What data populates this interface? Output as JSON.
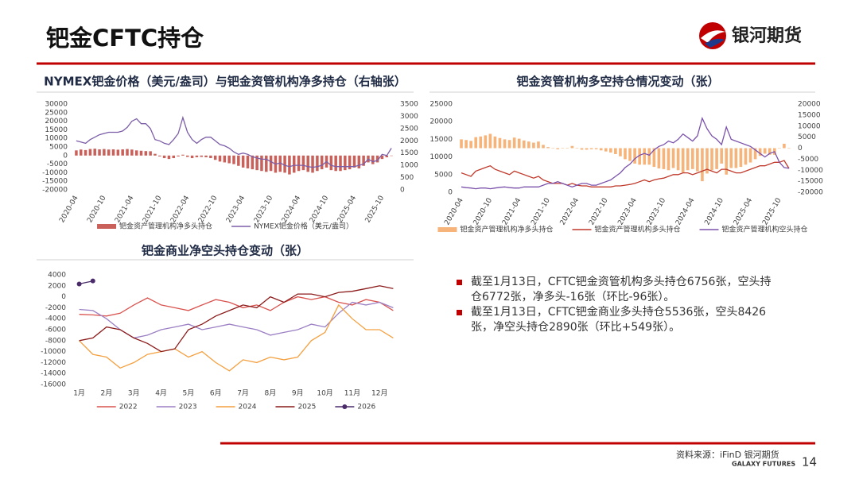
{
  "header": {
    "title": "钯金CFTC持仓",
    "logo_text": "银河期货"
  },
  "chart_data": [
    {
      "type": "combo",
      "title": "NYMEX钯金价格（美元/盎司）与钯金资管机构净多持仓（右轴张）",
      "legend": "bottom",
      "categories": [
        "2020-04",
        null,
        null,
        null,
        null,
        null,
        "2020-10",
        null,
        null,
        null,
        null,
        null,
        "2021-04",
        null,
        null,
        null,
        null,
        null,
        "2021-10",
        null,
        null,
        null,
        null,
        null,
        "2022-04",
        null,
        null,
        null,
        null,
        null,
        "2022-10",
        null,
        null,
        null,
        null,
        null,
        "2023-04",
        null,
        null,
        null,
        null,
        null,
        "2023-10",
        null,
        null,
        null,
        null,
        null,
        "2024-04",
        null,
        null,
        null,
        null,
        null,
        "2024-10",
        null,
        null,
        null,
        null,
        null,
        "2025-04",
        null,
        null,
        null,
        null,
        null,
        "2025-10",
        null,
        null
      ],
      "ylim": [
        -20000,
        30000
      ],
      "yticks": [
        -20000,
        -15000,
        -10000,
        -5000,
        0,
        5000,
        10000,
        15000,
        20000,
        25000,
        30000
      ],
      "y2lim": [
        0,
        3500
      ],
      "y2ticks": [
        0,
        500,
        1000,
        1500,
        2000,
        2500,
        3000,
        3500
      ],
      "series": [
        {
          "name": "钯金资产管理机构净多头持仓",
          "type": "bar",
          "color": "#c9605a",
          "values": [
            3000,
            3500,
            3200,
            3800,
            4000,
            3600,
            3800,
            3500,
            3600,
            3400,
            3600,
            3800,
            3500,
            3000,
            2800,
            2600,
            2500,
            1000,
            -500,
            -1500,
            -2000,
            -1500,
            -500,
            500,
            -800,
            -1500,
            -1000,
            -800,
            -1000,
            -1500,
            -2500,
            -3500,
            -4000,
            -4500,
            -5000,
            -6000,
            -7000,
            -7500,
            -8000,
            -8500,
            -9000,
            -9500,
            -9000,
            -10000,
            -9500,
            -10000,
            -11000,
            -10000,
            -9000,
            -8500,
            -9500,
            -10000,
            -9000,
            -8000,
            -7000,
            -8500,
            -9000,
            -9000,
            -8500,
            -8000,
            -7000,
            -7500,
            -6000,
            -4000,
            -5000,
            -4000,
            -2000,
            -1000,
            -16
          ]
        },
        {
          "name": "NYMEX钯金价格（美元/盎司）",
          "type": "line",
          "axis": "y2",
          "color": "#7b5ea7",
          "values": [
            2000,
            1950,
            1900,
            2050,
            2150,
            2250,
            2300,
            2350,
            2350,
            2350,
            2400,
            2550,
            2800,
            2900,
            2700,
            2700,
            2500,
            2050,
            2000,
            1900,
            1850,
            2050,
            2300,
            2950,
            2350,
            2050,
            1900,
            2050,
            2150,
            2150,
            2000,
            1850,
            1800,
            1700,
            1550,
            1450,
            1500,
            1450,
            1350,
            1300,
            1250,
            1250,
            1150,
            1050,
            1100,
            1000,
            950,
            1000,
            1000,
            1000,
            950,
            920,
            950,
            1000,
            1150,
            1000,
            950,
            950,
            950,
            950,
            950,
            1000,
            1050,
            1250,
            1150,
            1200,
            1450,
            1400,
            1700
          ]
        }
      ]
    },
    {
      "type": "combo",
      "title": "钯金资管机构多空持仓情况变动（张）",
      "legend": "bottom",
      "categories": [
        "2020-04",
        null,
        null,
        null,
        null,
        null,
        "2020-10",
        null,
        null,
        null,
        null,
        null,
        "2021-04",
        null,
        null,
        null,
        null,
        null,
        "2021-10",
        null,
        null,
        null,
        null,
        null,
        "2022-04",
        null,
        null,
        null,
        null,
        null,
        "2022-10",
        null,
        null,
        null,
        null,
        null,
        "2023-04",
        null,
        null,
        null,
        null,
        null,
        "2023-10",
        null,
        null,
        null,
        null,
        null,
        "2024-04",
        null,
        null,
        null,
        null,
        null,
        "2024-10",
        null,
        null,
        null,
        null,
        null,
        "2025-04",
        null,
        null,
        null,
        null,
        null,
        "2025-10",
        null,
        null
      ],
      "ylim": [
        0,
        25000
      ],
      "yticks": [
        0,
        5000,
        10000,
        15000,
        20000,
        25000
      ],
      "y2lim": [
        -20000,
        20000
      ],
      "y2ticks": [
        -20000,
        -15000,
        -10000,
        -5000,
        0,
        5000,
        10000,
        15000,
        20000
      ],
      "series": [
        {
          "name": "钯金资产管理机构净多头持仓",
          "type": "bar",
          "axis": "y2",
          "color": "#f6b47a",
          "values": [
            4000,
            3700,
            3300,
            5000,
            5300,
            5800,
            6500,
            5300,
            4600,
            4000,
            3700,
            4800,
            4300,
            3500,
            3000,
            2500,
            3000,
            1500,
            500,
            0,
            -500,
            0,
            0,
            1000,
            0,
            -700,
            -700,
            -500,
            -500,
            -1000,
            -1500,
            -2000,
            -2700,
            -3700,
            -5000,
            -5800,
            -7000,
            -7500,
            -7500,
            -7500,
            -8500,
            -9200,
            -9500,
            -10000,
            -9000,
            -10000,
            -11000,
            -10000,
            -9500,
            -10500,
            -15000,
            -11500,
            -10000,
            -9500,
            -7000,
            -12000,
            -9000,
            -9000,
            -8500,
            -7500,
            -6500,
            -5000,
            -3500,
            -2500,
            -3000,
            -3000,
            0,
            2000,
            -16
          ]
        },
        {
          "name": "钯金资产管理机构多头持仓",
          "type": "line",
          "color": "#c0392b",
          "values": [
            5500,
            5000,
            4500,
            6000,
            6500,
            7000,
            7500,
            6500,
            6000,
            5500,
            5000,
            6000,
            5500,
            5000,
            4500,
            4000,
            4500,
            3500,
            3000,
            2500,
            2500,
            2500,
            2000,
            2500,
            2000,
            1800,
            1800,
            1500,
            1500,
            1500,
            1500,
            1500,
            1800,
            1800,
            2000,
            2200,
            2500,
            3000,
            3500,
            3000,
            3500,
            3800,
            4000,
            4500,
            5000,
            5000,
            5500,
            5500,
            5000,
            5500,
            6000,
            6500,
            6000,
            5500,
            6500,
            6500,
            6000,
            5500,
            5500,
            6000,
            6500,
            7000,
            7500,
            7500,
            8000,
            8500,
            8500,
            9000,
            6756
          ]
        },
        {
          "name": "钯金资产管理机构空头持仓",
          "type": "line",
          "color": "#7b52ab",
          "values": [
            1500,
            1300,
            1200,
            1000,
            1200,
            1200,
            1000,
            1200,
            1400,
            1500,
            1300,
            1200,
            1200,
            1500,
            1500,
            1500,
            1500,
            2000,
            2500,
            2500,
            3000,
            2500,
            2000,
            1500,
            2000,
            2500,
            2500,
            2000,
            2000,
            2500,
            3000,
            3500,
            4500,
            5500,
            7000,
            8000,
            9500,
            10500,
            11000,
            10500,
            12000,
            13000,
            13500,
            14500,
            14000,
            15000,
            16500,
            15500,
            14500,
            16000,
            21000,
            18000,
            16000,
            15000,
            13500,
            18500,
            15000,
            14500,
            14000,
            13500,
            13000,
            12000,
            11000,
            10000,
            11000,
            11500,
            8500,
            7000,
            6772
          ]
        }
      ]
    },
    {
      "type": "line",
      "title": "钯金商业净空头持仓变动（张）",
      "legend": "bottom",
      "categories": [
        "1月",
        null,
        "2月",
        null,
        "3月",
        null,
        "4月",
        null,
        "5月",
        null,
        "6月",
        null,
        "7月",
        null,
        "8月",
        null,
        "9月",
        null,
        "10月",
        null,
        "11月",
        null,
        "12月",
        null
      ],
      "ylim": [
        -16000,
        4000
      ],
      "yticks": [
        -16000,
        -14000,
        -12000,
        -10000,
        -8000,
        -6000,
        -4000,
        -2000,
        0,
        2000,
        4000
      ],
      "series": [
        {
          "name": "2022",
          "color": "#d9534f",
          "values": [
            -3200,
            -3300,
            -3500,
            -3000,
            -1500,
            -200,
            -1500,
            -2000,
            -2500,
            -1500,
            -500,
            -1000,
            -2000,
            -1500,
            -2500,
            -1000,
            0,
            -500,
            0,
            -1000,
            -1500,
            -500,
            -1000,
            -2500
          ]
        },
        {
          "name": "2023",
          "color": "#9b7fc4",
          "values": [
            -2300,
            -2500,
            -4000,
            -6000,
            -7500,
            -7000,
            -6000,
            -5500,
            -5000,
            -6000,
            -5500,
            -5000,
            -5500,
            -6000,
            -7000,
            -6500,
            -6000,
            -5000,
            -5500,
            -3000,
            -1000,
            -1500,
            -1000,
            -2000
          ]
        },
        {
          "name": "2024",
          "color": "#f4a040",
          "values": [
            -8000,
            -10500,
            -11000,
            -13000,
            -12000,
            -10500,
            -10000,
            -9500,
            -11000,
            -10000,
            -12000,
            -13500,
            -11500,
            -12000,
            -11000,
            -11500,
            -11000,
            -8000,
            -6500,
            -1500,
            -4000,
            -6000,
            -6000,
            -7500
          ]
        },
        {
          "name": "2025",
          "color": "#8b1a1a",
          "values": [
            -8000,
            -7500,
            -5500,
            -6000,
            -7500,
            -8500,
            -10000,
            -9500,
            -6000,
            -5000,
            -3500,
            -2500,
            -1500,
            -2000,
            0,
            -1000,
            500,
            500,
            0,
            800,
            1000,
            1500,
            2000,
            1500
          ]
        },
        {
          "name": "2026",
          "color": "#4b2c6b",
          "markers": true,
          "values": [
            2341,
            2890,
            null,
            null,
            null,
            null,
            null,
            null,
            null,
            null,
            null,
            null,
            null,
            null,
            null,
            null,
            null,
            null,
            null,
            null,
            null,
            null,
            null,
            null
          ]
        }
      ]
    }
  ],
  "notes": [
    "截至1月13日，CFTC钯金资管机构多头持仓6756张，空头持仓6772张，净多头-16张（环比-96张）。",
    "截至1月13日，CFTC钯金商业多头持仓5536张，空头8426张，净空头持仓2890张（环比+549张）。"
  ],
  "footer": {
    "source": "资料来源：iFinD 银河期货",
    "brand_en": "GALAXY FUTURES",
    "page": "14"
  }
}
